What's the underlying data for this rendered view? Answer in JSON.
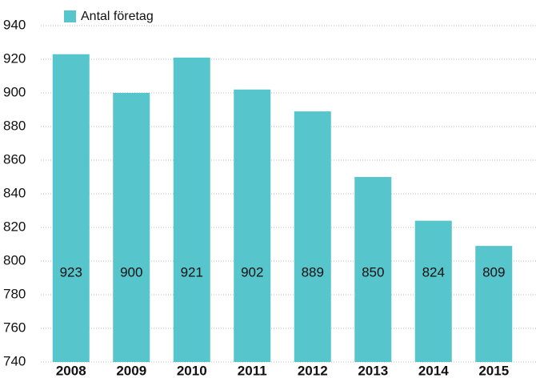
{
  "chart_data": {
    "type": "bar",
    "categories": [
      "2008",
      "2009",
      "2010",
      "2011",
      "2012",
      "2013",
      "2014",
      "2015"
    ],
    "series": [
      {
        "name": "Antal företag",
        "color": "#56c5cc",
        "values": [
          923,
          900,
          921,
          902,
          889,
          850,
          824,
          809
        ]
      }
    ],
    "ylim": [
      740,
      940
    ],
    "yticks": [
      740,
      760,
      780,
      800,
      820,
      840,
      860,
      880,
      900,
      920,
      940
    ],
    "grid": true
  }
}
